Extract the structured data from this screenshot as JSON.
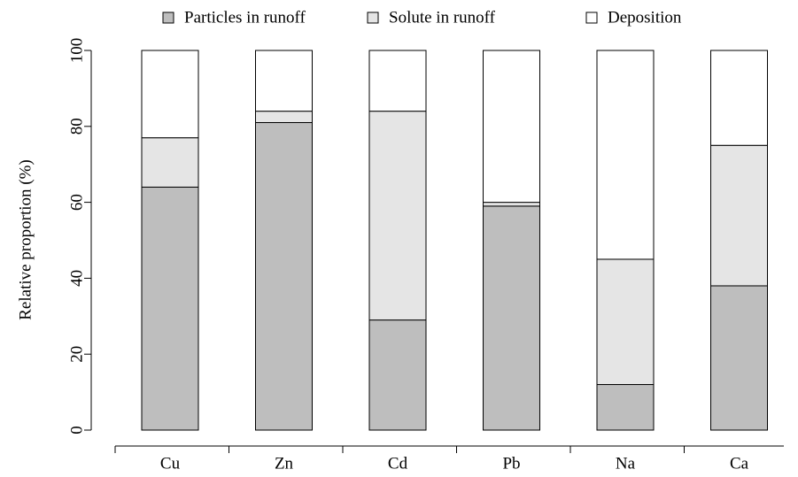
{
  "chart_data": {
    "type": "stacked_bar",
    "y_label": "Relative proportion (%)",
    "categories": [
      "Cu",
      "Zn",
      "Cd",
      "Pb",
      "Na",
      "Ca"
    ],
    "series": [
      {
        "name": "Particles in runoff",
        "color": "#bebebe",
        "values": [
          64,
          81,
          29,
          59,
          12,
          38
        ]
      },
      {
        "name": "Solute in runoff",
        "color": "#e5e5e5",
        "values": [
          13,
          3,
          55,
          1,
          33,
          37
        ]
      },
      {
        "name": "Deposition",
        "color": "#ffffff",
        "values": [
          23,
          16,
          16,
          40,
          55,
          25
        ]
      }
    ],
    "ylim": [
      0,
      100
    ],
    "yticks": [
      0,
      20,
      40,
      60,
      80,
      100
    ],
    "legend": "top"
  }
}
